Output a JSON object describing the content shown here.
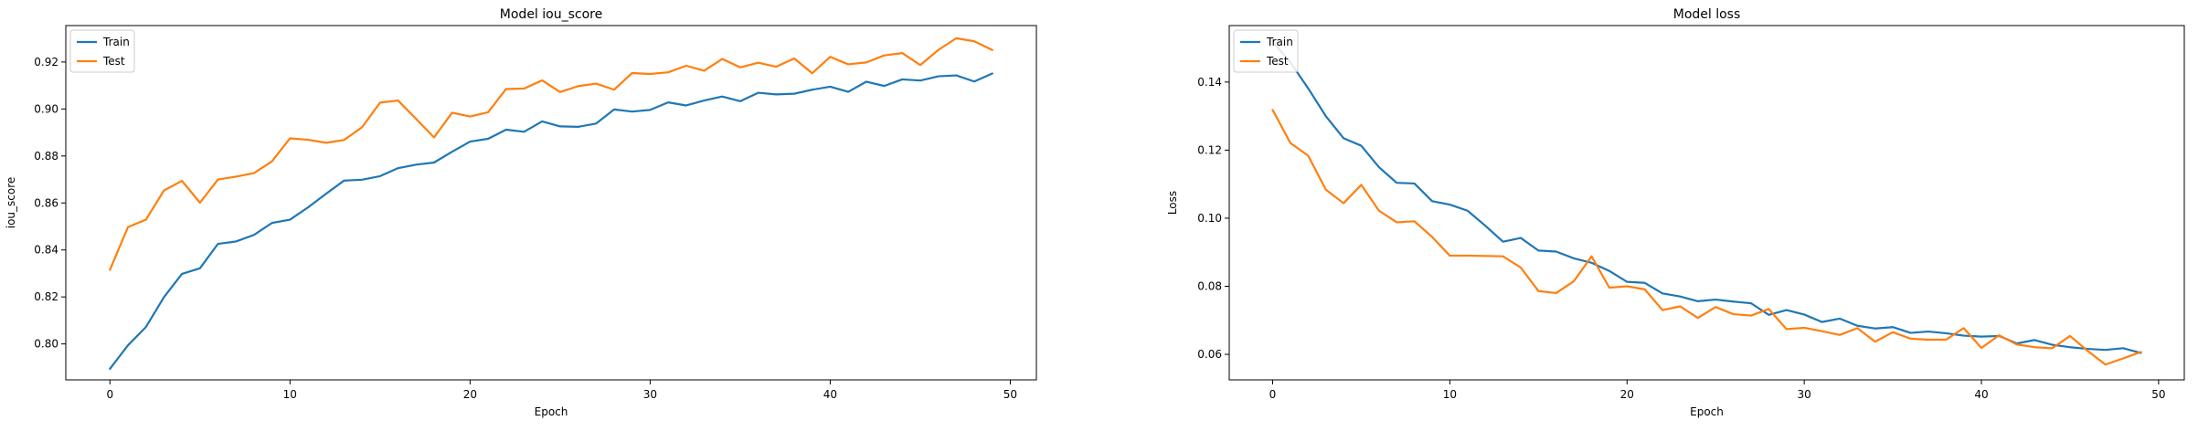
{
  "colors": {
    "train": "#1f77b4",
    "test": "#ff7f0e"
  },
  "chart_data": [
    {
      "type": "line",
      "title": "Model iou_score",
      "xlabel": "Epoch",
      "ylabel": "iou_score",
      "xlim": [
        -2.45,
        51.45
      ],
      "ylim": [
        0.7847,
        0.9355
      ],
      "xticks": [
        0,
        10,
        20,
        30,
        40,
        50
      ],
      "yticks": [
        0.8,
        0.82,
        0.84,
        0.86,
        0.88,
        0.9,
        0.92
      ],
      "ytick_decimals": 2,
      "legend": "upper-left",
      "x": [
        0,
        1,
        2,
        3,
        4,
        5,
        6,
        7,
        8,
        9,
        10,
        11,
        12,
        13,
        14,
        15,
        16,
        17,
        18,
        19,
        20,
        21,
        22,
        23,
        24,
        25,
        26,
        27,
        28,
        29,
        30,
        31,
        32,
        33,
        34,
        35,
        36,
        37,
        38,
        39,
        40,
        41,
        42,
        43,
        44,
        45,
        46,
        47,
        48,
        49
      ],
      "series": [
        {
          "name": "Train",
          "values": [
            0.7894,
            0.7994,
            0.8072,
            0.8199,
            0.8298,
            0.8322,
            0.8426,
            0.8436,
            0.8464,
            0.8515,
            0.8529,
            0.8581,
            0.8639,
            0.8695,
            0.8699,
            0.8714,
            0.8748,
            0.8763,
            0.8772,
            0.8818,
            0.8861,
            0.8873,
            0.8912,
            0.8903,
            0.8947,
            0.8926,
            0.8924,
            0.8938,
            0.8998,
            0.8989,
            0.8996,
            0.9028,
            0.9015,
            0.9036,
            0.9053,
            0.9033,
            0.9069,
            0.9062,
            0.9065,
            0.9082,
            0.9095,
            0.9073,
            0.9116,
            0.9098,
            0.9126,
            0.9121,
            0.9139,
            0.9143,
            0.9117,
            0.9151
          ]
        },
        {
          "name": "Test",
          "values": [
            0.8315,
            0.8497,
            0.8529,
            0.8653,
            0.8694,
            0.8601,
            0.87,
            0.8712,
            0.8727,
            0.8777,
            0.8875,
            0.8869,
            0.8856,
            0.8868,
            0.8922,
            0.9027,
            0.9036,
            0.8958,
            0.8879,
            0.8984,
            0.8968,
            0.8986,
            0.9085,
            0.9087,
            0.9122,
            0.9072,
            0.9097,
            0.9108,
            0.9082,
            0.9153,
            0.9149,
            0.9156,
            0.9184,
            0.9163,
            0.9213,
            0.9177,
            0.9197,
            0.918,
            0.9215,
            0.9152,
            0.9222,
            0.919,
            0.9198,
            0.9228,
            0.9238,
            0.9187,
            0.9251,
            0.9301,
            0.9288,
            0.9251
          ]
        }
      ]
    },
    {
      "type": "line",
      "title": "Model loss",
      "xlabel": "Epoch",
      "ylabel": "Loss",
      "xlim": [
        -2.45,
        51.45
      ],
      "ylim": [
        0.0525,
        0.1566
      ],
      "xticks": [
        0,
        10,
        20,
        30,
        40,
        50
      ],
      "yticks": [
        0.06,
        0.08,
        0.1,
        0.12,
        0.14
      ],
      "ytick_decimals": 2,
      "legend": "upper-left",
      "x": [
        0,
        1,
        2,
        3,
        4,
        5,
        6,
        7,
        8,
        9,
        10,
        11,
        12,
        13,
        14,
        15,
        16,
        17,
        18,
        19,
        20,
        21,
        22,
        23,
        24,
        25,
        26,
        27,
        28,
        29,
        30,
        31,
        32,
        33,
        34,
        35,
        36,
        37,
        38,
        39,
        40,
        41,
        42,
        43,
        44,
        45,
        46,
        47,
        48,
        49
      ],
      "series": [
        {
          "name": "Train",
          "values": [
            0.1519,
            0.1458,
            0.1382,
            0.13,
            0.1235,
            0.1213,
            0.115,
            0.1104,
            0.1102,
            0.105,
            0.104,
            0.1022,
            0.0978,
            0.0931,
            0.0942,
            0.0905,
            0.0902,
            0.0882,
            0.0869,
            0.0845,
            0.0813,
            0.081,
            0.0779,
            0.077,
            0.0756,
            0.0761,
            0.0755,
            0.075,
            0.0716,
            0.073,
            0.0717,
            0.0695,
            0.0705,
            0.0684,
            0.0676,
            0.068,
            0.0663,
            0.0667,
            0.0662,
            0.0655,
            0.0652,
            0.0654,
            0.0632,
            0.0642,
            0.0628,
            0.0621,
            0.0616,
            0.0613,
            0.0618,
            0.0604
          ]
        },
        {
          "name": "Test",
          "values": [
            0.1318,
            0.1221,
            0.1184,
            0.1084,
            0.1044,
            0.1098,
            0.1022,
            0.0988,
            0.0991,
            0.0945,
            0.089,
            0.089,
            0.0889,
            0.0888,
            0.0855,
            0.0786,
            0.078,
            0.0815,
            0.0888,
            0.0796,
            0.08,
            0.0791,
            0.073,
            0.0741,
            0.0707,
            0.0739,
            0.0718,
            0.0714,
            0.0733,
            0.0674,
            0.0678,
            0.0668,
            0.0657,
            0.0677,
            0.0637,
            0.0665,
            0.0646,
            0.0643,
            0.0643,
            0.0677,
            0.0619,
            0.0656,
            0.0629,
            0.0621,
            0.0618,
            0.0654,
            0.061,
            0.057,
            0.0588,
            0.0607
          ]
        }
      ]
    }
  ]
}
